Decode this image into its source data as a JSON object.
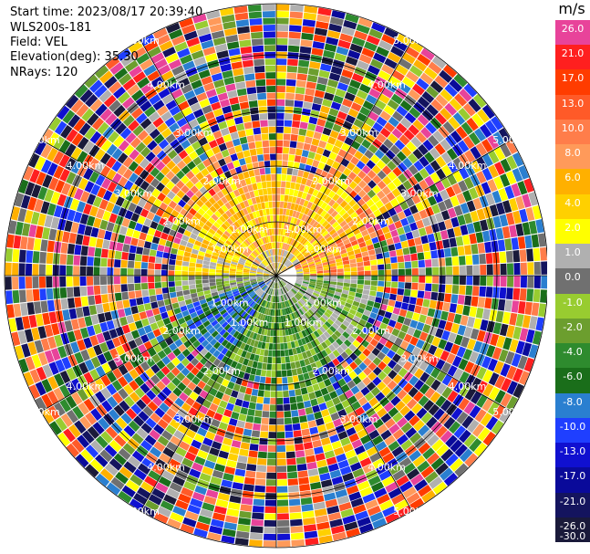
{
  "header": {
    "start_time": "Start time: 2023/08/17 20:39:40",
    "instrument": "WLS200s-181",
    "field": "Field: VEL",
    "elevation": "Elevation(deg): 35.30",
    "nrays": "NRays: 120"
  },
  "colorbar": {
    "unit": "m/s",
    "labels": [
      "26.0",
      "21.0",
      "17.0",
      "13.0",
      "10.0",
      "8.0",
      "6.0",
      "4.0",
      "2.0",
      "1.0",
      "0.0",
      "-1.0",
      "-2.0",
      "-4.0",
      "-6.0",
      "-8.0",
      "-10.0",
      "-13.0",
      "-17.0",
      "-21.0",
      "-26.0",
      "-30.0"
    ],
    "colors": [
      "#e8439a",
      "#ff1f1f",
      "#ff3c00",
      "#ff5a28",
      "#ff7d4a",
      "#ff9a5a",
      "#ffb000",
      "#ffd000",
      "#ffff00",
      "#b0b0b0",
      "#707070",
      "#98cc30",
      "#6c9e2e",
      "#2e8b2e",
      "#1a6e1a",
      "#2a7fd0",
      "#1f3fff",
      "#1010d0",
      "#0a0a9a",
      "#14145e",
      "#1a1a3a"
    ]
  },
  "chart_data": {
    "type": "heatmap",
    "subtype": "ppi",
    "field": "VEL",
    "units": "m/s",
    "nrays": 120,
    "range_rings_km": [
      1.0,
      2.0,
      3.0,
      4.0,
      5.0
    ],
    "ring_labels": [
      "1.00km",
      "2.00km",
      "3.00km",
      "4.00km",
      "5.00km"
    ],
    "color_levels": [
      26.0,
      21.0,
      17.0,
      13.0,
      10.0,
      8.0,
      6.0,
      4.0,
      2.0,
      1.0,
      0.0,
      -1.0,
      -2.0,
      -4.0,
      -6.0,
      -8.0,
      -10.0,
      -13.0,
      -17.0,
      -21.0,
      -26.0,
      -30.0
    ],
    "sectors": [
      {
        "region": "north inner",
        "velocity_ms": [
          2.0,
          6.0
        ]
      },
      {
        "region": "north-east inner",
        "velocity_ms": [
          6.0,
          13.0
        ]
      },
      {
        "region": "south-west inner",
        "velocity_ms": [
          -10.0,
          -6.0
        ]
      },
      {
        "region": "south inner",
        "velocity_ms": [
          -6.0,
          -2.0
        ]
      },
      {
        "region": "outer ranges",
        "velocity_ms": [
          -30.0,
          26.0
        ]
      }
    ]
  }
}
